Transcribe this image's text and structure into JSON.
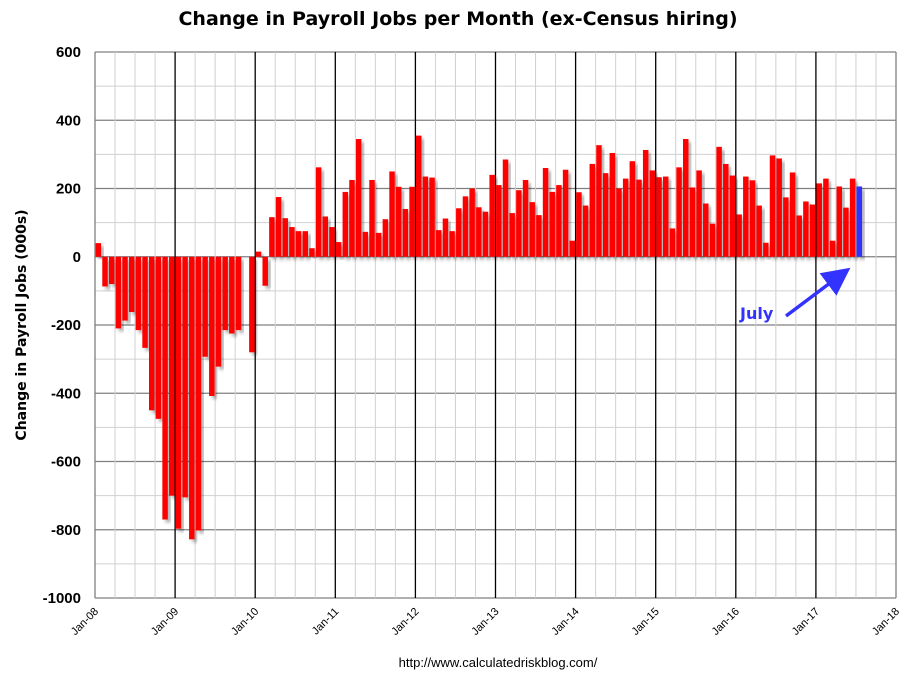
{
  "chart_data": {
    "type": "bar",
    "title": "Change in Payroll Jobs per Month (ex-Census hiring)",
    "xlabel": "",
    "ylabel": "Change in Payroll Jobs (000s)",
    "ylim": [
      -1000,
      600
    ],
    "yticks": [
      "600",
      "400",
      "200",
      "0",
      "-200",
      "-400",
      "-600",
      "-800",
      "-1000"
    ],
    "ytick_values": [
      600,
      400,
      200,
      0,
      -200,
      -400,
      -600,
      -800,
      -1000
    ],
    "xtick_labels": [
      "Jan-08",
      "Jan-09",
      "Jan-10",
      "Jan-11",
      "Jan-12",
      "Jan-13",
      "Jan-14",
      "Jan-15",
      "Jan-16",
      "Jan-17",
      "Jan-18"
    ],
    "start_month": "Jan-08",
    "grid": true,
    "values": [
      40,
      -87,
      -80,
      -210,
      -187,
      -162,
      -215,
      -267,
      -450,
      -475,
      -770,
      -700,
      -797,
      -705,
      -828,
      -802,
      -293,
      -408,
      -322,
      -215,
      -225,
      -215,
      0,
      -280,
      15,
      -85,
      116,
      175,
      113,
      87,
      75,
      75,
      25,
      262,
      118,
      87,
      43,
      190,
      225,
      345,
      73,
      225,
      70,
      110,
      250,
      205,
      140,
      205,
      355,
      235,
      232,
      78,
      112,
      75,
      142,
      177,
      200,
      145,
      132,
      240,
      210,
      285,
      128,
      195,
      225,
      160,
      122,
      260,
      190,
      210,
      255,
      47,
      189,
      150,
      272,
      327,
      245,
      304,
      200,
      229,
      280,
      226,
      313,
      253,
      233,
      235,
      83,
      262,
      345,
      203,
      253,
      156,
      97,
      322,
      272,
      238,
      124,
      235,
      224,
      150,
      41,
      297,
      288,
      174,
      247,
      121,
      162,
      153,
      215,
      229,
      47,
      206,
      144,
      229,
      206
    ],
    "highlight_last": true,
    "colors": {
      "bar": "#ff0000",
      "highlight": "#3333ff",
      "annotation": "#3333ff"
    },
    "annotation": {
      "text": "July",
      "target": "Jul-17"
    },
    "source": "http://www.calculatedriskblog.com/"
  }
}
